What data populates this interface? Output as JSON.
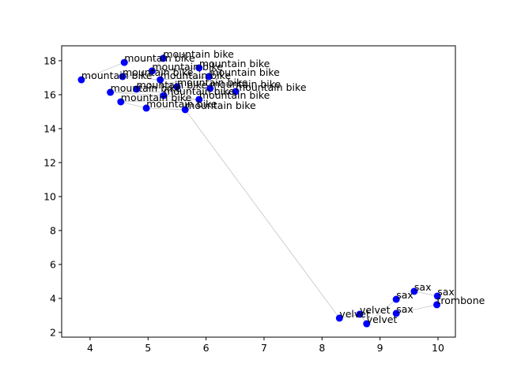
{
  "chart_data": {
    "type": "scatter",
    "color": "#0000ff",
    "line_color": "#bdbdbd",
    "x": [
      3.85,
      4.59,
      5.26,
      5.07,
      5.88,
      4.56,
      5.21,
      6.05,
      4.8,
      5.5,
      6.07,
      6.51,
      4.35,
      5.27,
      5.88,
      4.53,
      4.97,
      5.64,
      8.3,
      8.65,
      8.77,
      9.28,
      9.59,
      9.99,
      9.98,
      9.28
    ],
    "values": [
      16.88,
      17.9,
      18.14,
      17.4,
      17.58,
      17.07,
      16.88,
      17.07,
      16.33,
      16.47,
      16.37,
      16.19,
      16.14,
      15.95,
      15.72,
      15.58,
      15.21,
      15.12,
      2.84,
      3.07,
      2.51,
      3.95,
      4.42,
      4.14,
      3.63,
      3.12
    ],
    "labels": [
      "mountain bike",
      "mountain bike",
      "mountain bike",
      "mountain bike",
      "mountain bike",
      "mountain bike",
      "mountain bike",
      "mountain bike",
      "mountain bike",
      "mountain bike",
      "mountain bike",
      "mountain bike",
      "mountain bike",
      "mountain bike",
      "mountain bike",
      "mountain bike",
      "mountain bike",
      "mountain bike",
      "velvet",
      "velvet",
      "velvet",
      "sax",
      "sax",
      "sax",
      "trombone",
      "sax"
    ],
    "xlim": [
      3.51,
      10.3
    ],
    "ylim": [
      1.72,
      18.88
    ],
    "xticks": [
      4,
      5,
      6,
      7,
      8,
      9,
      10
    ],
    "yticks": [
      2,
      4,
      6,
      8,
      10,
      12,
      14,
      16,
      18
    ]
  }
}
